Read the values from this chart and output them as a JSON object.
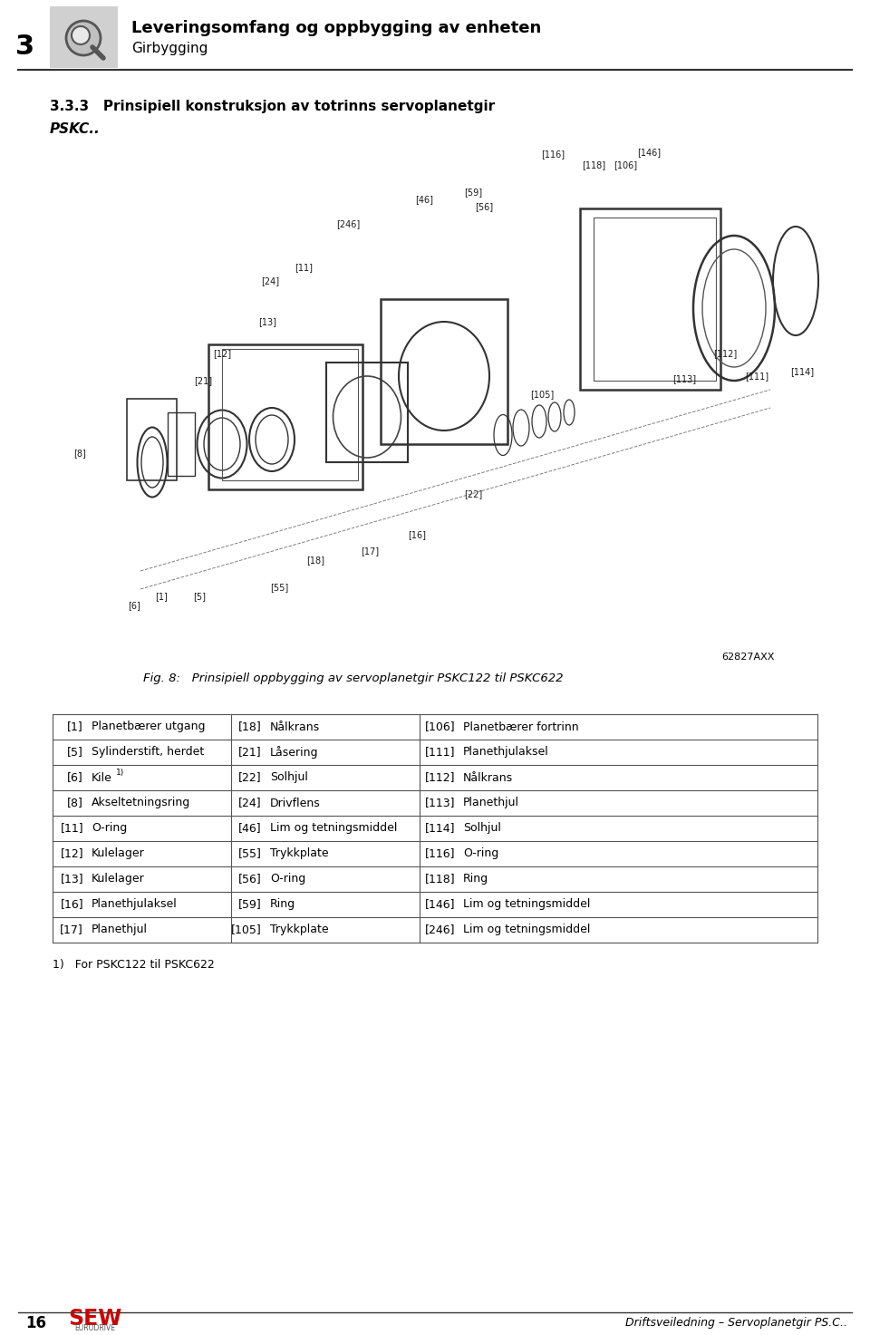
{
  "page_number": "16",
  "chapter_number": "3",
  "chapter_title": "Leveringsomfang og oppbygging av enheten",
  "chapter_subtitle": "Girbygging",
  "section_number": "3.3.3",
  "section_title": "Prinsipiell konstruksjon av totrinns servoplanetgir",
  "section_subtitle": "PSKC..",
  "fig_caption": "Fig. 8:   Prinsipiell oppbygging av servoplanetgir PSKC122 til PSKC622",
  "fig_code": "62827AXX",
  "footnote": "1)   For PSKC122 til PSKC622",
  "footer_right": "Driftsveiledning – Servoplanetgir PS.C..",
  "table": [
    {
      "col1_num": "[1]",
      "col1_txt": "Planetbærer utgang",
      "col2_num": "[18]",
      "col2_txt": "Nålkrans",
      "col3_num": "[106]",
      "col3_txt": "Planetbærer fortrinn"
    },
    {
      "col1_num": "[5]",
      "col1_txt": "Sylinderstift, herdet",
      "col2_num": "[21]",
      "col2_txt": "Låsering",
      "col3_num": "[111]",
      "col3_txt": "Planethjulaksel"
    },
    {
      "col1_num": "[6]",
      "col1_txt": "Kile",
      "col2_num": "[22]",
      "col2_txt": "Solhjul",
      "col3_num": "[112]",
      "col3_txt": "Nålkrans"
    },
    {
      "col1_num": "[8]",
      "col1_txt": "Akseltetningsring",
      "col2_num": "[24]",
      "col2_txt": "Drivflens",
      "col3_num": "[113]",
      "col3_txt": "Planethjul"
    },
    {
      "col1_num": "[11]",
      "col1_txt": "O-ring",
      "col2_num": "[46]",
      "col2_txt": "Lim og tetningsmiddel",
      "col3_num": "[114]",
      "col3_txt": "Solhjul"
    },
    {
      "col1_num": "[12]",
      "col1_txt": "Kulelager",
      "col2_num": "[55]",
      "col2_txt": "Trykkplate",
      "col3_num": "[116]",
      "col3_txt": "O-ring"
    },
    {
      "col1_num": "[13]",
      "col1_txt": "Kulelager",
      "col2_num": "[56]",
      "col2_txt": "O-ring",
      "col3_num": "[118]",
      "col3_txt": "Ring"
    },
    {
      "col1_num": "[16]",
      "col1_txt": "Planethjulaksel",
      "col2_num": "[59]",
      "col2_txt": "Ring",
      "col3_num": "[146]",
      "col3_txt": "Lim og tetningsmiddel"
    },
    {
      "col1_num": "[17]",
      "col1_txt": "Planethjul",
      "col2_num": "[105]",
      "col2_txt": "Trykkplate",
      "col3_num": "[246]",
      "col3_txt": "Lim og tetningsmiddel"
    }
  ],
  "kile_row_index": 2,
  "bg_color": "#ffffff",
  "header_bg": "#d0d0d0",
  "table_border_color": "#555555",
  "text_color": "#000000",
  "header_line_color": "#333333"
}
